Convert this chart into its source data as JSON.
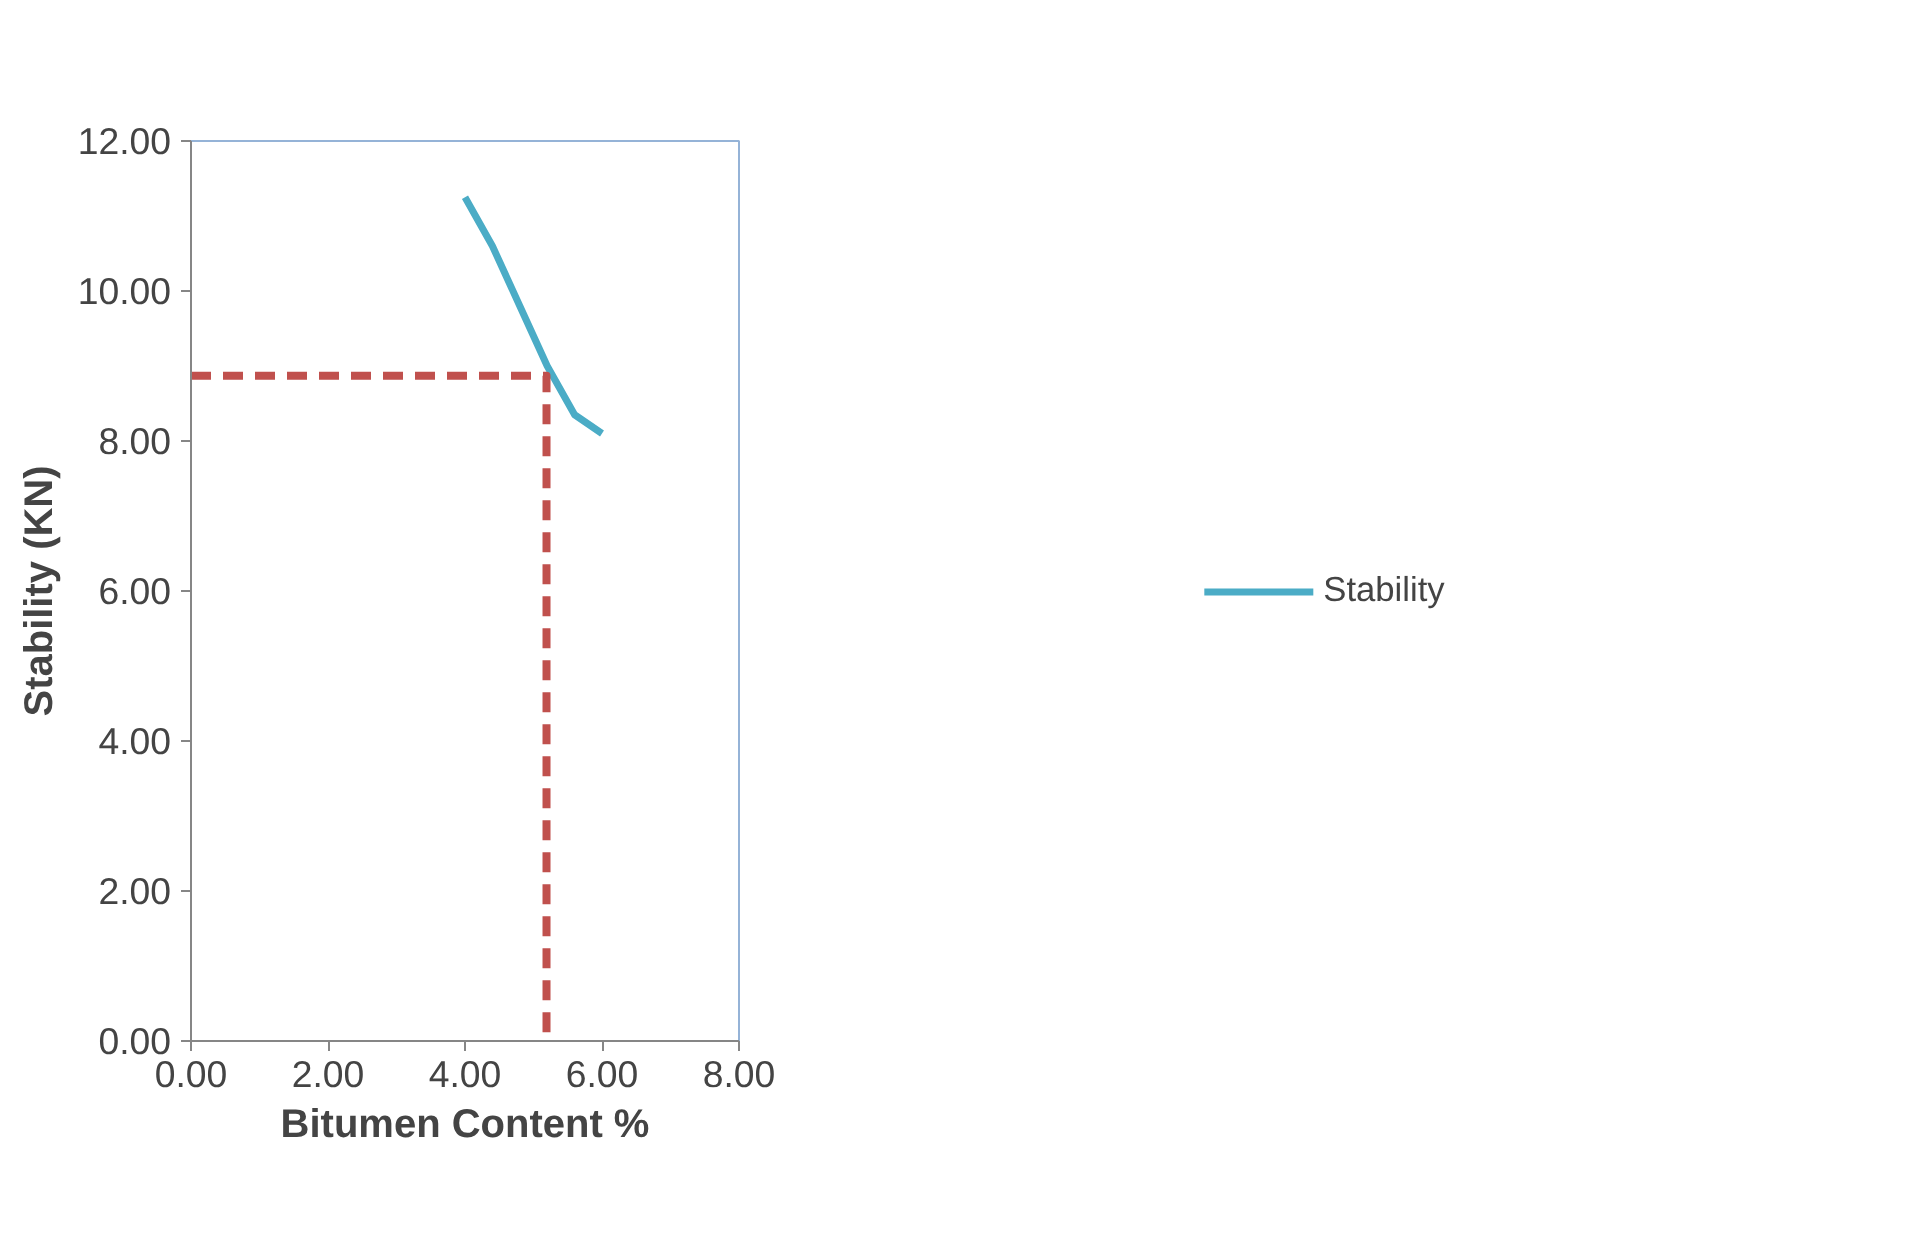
{
  "chart_data": {
    "type": "line",
    "xlabel": "Bitumen Content %",
    "ylabel": "Stability (KN)",
    "xlim": [
      0,
      8
    ],
    "ylim": [
      0,
      12
    ],
    "xticks": [
      {
        "value": 0,
        "label": "0.00"
      },
      {
        "value": 2,
        "label": "2.00"
      },
      {
        "value": 4,
        "label": "4.00"
      },
      {
        "value": 6,
        "label": "6.00"
      },
      {
        "value": 8,
        "label": "8.00"
      }
    ],
    "yticks": [
      {
        "value": 0,
        "label": "0.00"
      },
      {
        "value": 2,
        "label": "2.00"
      },
      {
        "value": 4,
        "label": "4.00"
      },
      {
        "value": 6,
        "label": "6.00"
      },
      {
        "value": 8,
        "label": "8.00"
      },
      {
        "value": 10,
        "label": "10.00"
      },
      {
        "value": 12,
        "label": "12.00"
      }
    ],
    "grid": false,
    "legend": "right",
    "marker": "none",
    "series": [
      {
        "name": "Stability",
        "color": "#4bacc6",
        "x": [
          4.0,
          4.4,
          4.8,
          5.2,
          5.6,
          6.0
        ],
        "values": [
          11.25,
          10.6,
          9.8,
          9.0,
          8.35,
          8.1
        ]
      },
      {
        "color": "#c0504d",
        "line_style": "dashed",
        "x": [
          0,
          5.19,
          5.19
        ],
        "values": [
          8.87,
          8.87,
          0
        ]
      }
    ]
  }
}
